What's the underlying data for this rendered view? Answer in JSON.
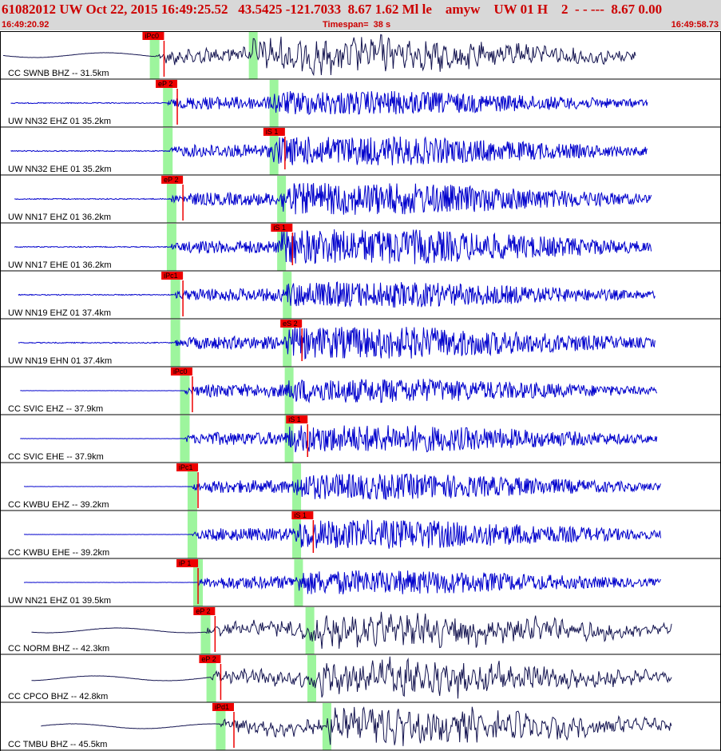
{
  "header": {
    "title": "61082012 UW Oct 22, 2015 16:49:25.52   43.5425 -121.7033  8.67 1.62 Ml le    amyw    UW 01 H    2  - - ---  8.67 0.00",
    "start_time": "16:49:20.92",
    "timespan": "Timespan=  38 s",
    "end_time": "16:49:58.73"
  },
  "colors": {
    "pick_box": "#ee0000",
    "pick_line": "#ee0000",
    "p_window": "#9df59d",
    "s_window": "#9df59d",
    "trace_blue": "#0000cc",
    "trace_navy": "#141450",
    "divider": "#000000"
  },
  "channels": [
    {
      "label": "CC SWNB BHZ -- 31.5km",
      "pick": "iPc0",
      "pick_time": 8.6,
      "p_time": 8.1,
      "s_time": 13.3,
      "color": "navy",
      "trace_start": 0.0,
      "trace_end": 33.6,
      "amplitude": 18,
      "style": "bb"
    },
    {
      "label": "UW NN32 EHZ 01 35.2km",
      "pick": "eP 2",
      "pick_time": 9.3,
      "p_time": 8.8,
      "s_time": 14.4,
      "color": "blue",
      "trace_start": 0.4,
      "trace_end": 34.2,
      "amplitude": 15,
      "style": "sp"
    },
    {
      "label": "UW NN32 EHE 01 35.2km",
      "pick": "iS 1",
      "pick_time": 15.0,
      "p_time": 8.8,
      "s_time": 14.4,
      "color": "blue",
      "trace_start": 0.4,
      "trace_end": 34.2,
      "amplitude": 18,
      "style": "sps"
    },
    {
      "label": "UW NN17 EHZ 01 36.2km",
      "pick": "eP 2",
      "pick_time": 9.6,
      "p_time": 9.0,
      "s_time": 14.8,
      "color": "blue",
      "trace_start": 0.6,
      "trace_end": 34.4,
      "amplitude": 20,
      "style": "sp"
    },
    {
      "label": "UW NN17 EHE 01 36.2km",
      "pick": "iS 1",
      "pick_time": 15.4,
      "p_time": 9.0,
      "s_time": 14.8,
      "color": "blue",
      "trace_start": 0.6,
      "trace_end": 34.4,
      "amplitude": 22,
      "style": "sps"
    },
    {
      "label": "UW NN19 EHZ 01 37.4km",
      "pick": "iPc1",
      "pick_time": 9.6,
      "p_time": 9.2,
      "s_time": 15.1,
      "color": "blue",
      "trace_start": 0.8,
      "trace_end": 34.6,
      "amplitude": 16,
      "style": "sp"
    },
    {
      "label": "UW NN19 EHN 01 37.4km",
      "pick": "eS 2",
      "pick_time": 15.9,
      "p_time": 9.2,
      "s_time": 15.1,
      "color": "blue",
      "trace_start": 0.8,
      "trace_end": 34.6,
      "amplitude": 20,
      "style": "sps"
    },
    {
      "label": "CC SVIC EHZ -- 37.9km",
      "pick": "iPc0",
      "pick_time": 10.1,
      "p_time": 9.7,
      "s_time": 15.2,
      "color": "blue",
      "trace_start": 0.9,
      "trace_end": 34.7,
      "amplitude": 15,
      "style": "flat"
    },
    {
      "label": "CC SVIC EHE -- 37.9km",
      "pick": "iS 1",
      "pick_time": 16.2,
      "p_time": 9.7,
      "s_time": 15.2,
      "color": "blue",
      "trace_start": 0.9,
      "trace_end": 34.7,
      "amplitude": 17,
      "style": "flats"
    },
    {
      "label": "CC KWBU EHZ -- 39.2km",
      "pick": "iPc1",
      "pick_time": 10.4,
      "p_time": 10.1,
      "s_time": 15.6,
      "color": "blue",
      "trace_start": 1.1,
      "trace_end": 34.9,
      "amplitude": 16,
      "style": "flat"
    },
    {
      "label": "CC KWBU EHE -- 39.2km",
      "pick": "iS 1",
      "pick_time": 16.5,
      "p_time": 10.1,
      "s_time": 15.6,
      "color": "blue",
      "trace_start": 1.1,
      "trace_end": 34.9,
      "amplitude": 18,
      "style": "flats"
    },
    {
      "label": "UW NN21 EHZ 01 39.5km",
      "pick": "iP 1",
      "pick_time": 10.4,
      "p_time": 10.4,
      "s_time": 15.7,
      "color": "blue",
      "trace_start": 1.1,
      "trace_end": 34.9,
      "amplitude": 15,
      "style": "flat"
    },
    {
      "label": "CC NORM BHZ -- 42.3km",
      "pick": "eP 2",
      "pick_time": 11.3,
      "p_time": 10.8,
      "s_time": 16.3,
      "color": "navy",
      "trace_start": 1.5,
      "trace_end": 35.5,
      "amplitude": 16,
      "style": "bb"
    },
    {
      "label": "CC CPCO BHZ -- 42.8km",
      "pick": "eP 2",
      "pick_time": 11.6,
      "p_time": 11.1,
      "s_time": 16.4,
      "color": "navy",
      "trace_start": 1.5,
      "trace_end": 35.5,
      "amplitude": 18,
      "style": "bb"
    },
    {
      "label": "CC TMBU BHZ -- 45.5km",
      "pick": "iPd1",
      "pick_time": 12.3,
      "p_time": 11.6,
      "s_time": 17.2,
      "color": "navy",
      "trace_start": 2.0,
      "trace_end": 35.5,
      "amplitude": 18,
      "style": "bb"
    }
  ],
  "timespan_seconds": 38
}
